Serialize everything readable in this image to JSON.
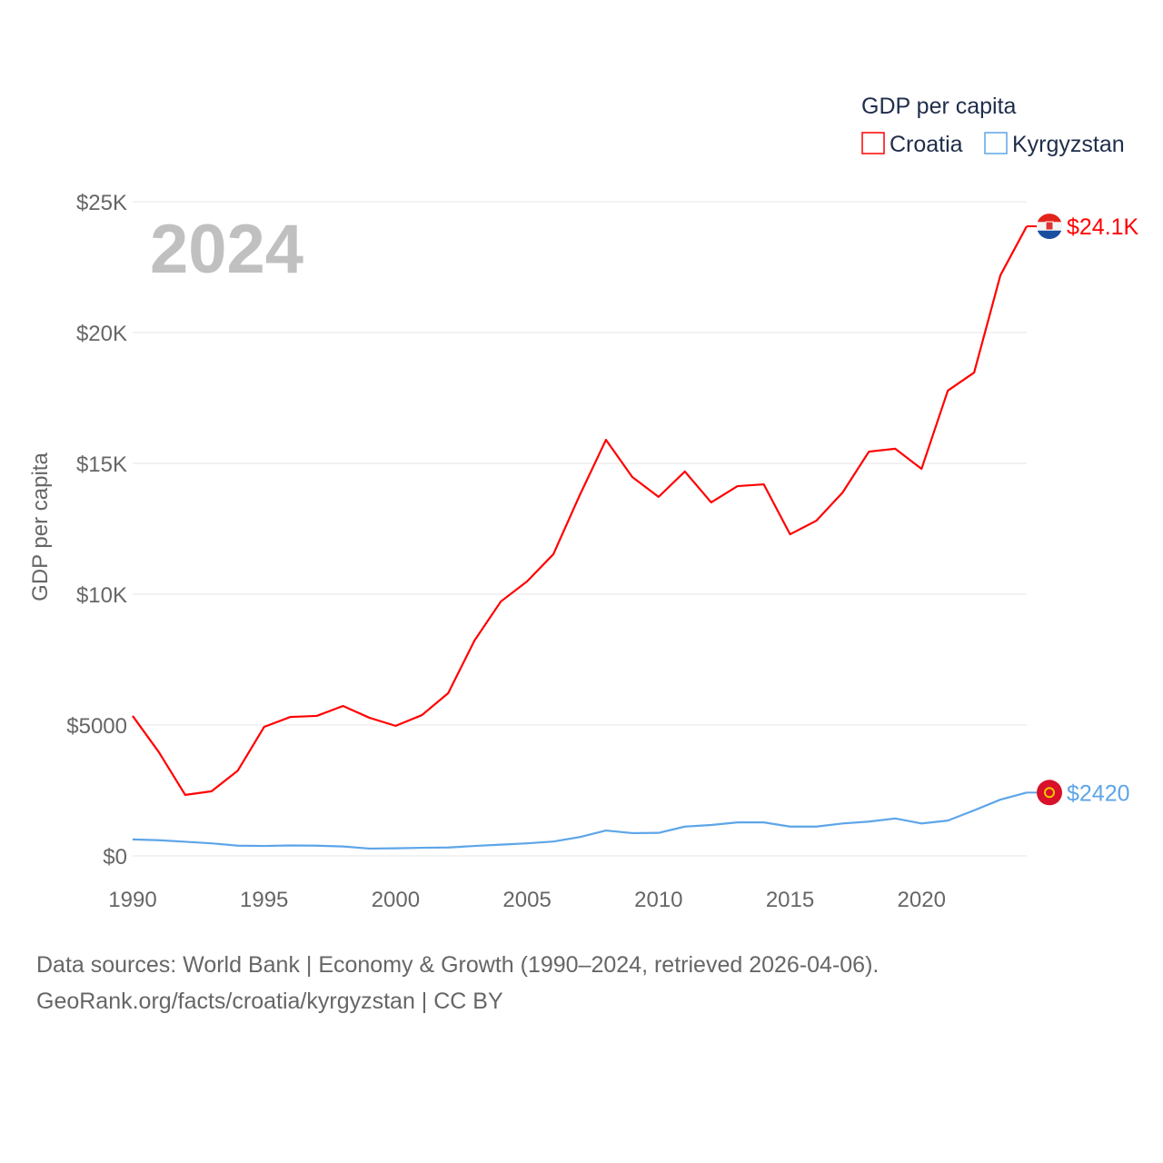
{
  "chart_data": {
    "type": "line",
    "title": "GDP per capita",
    "year_label": "2024",
    "ylabel": "GDP per capita",
    "xlabel": "",
    "ylim": [
      0,
      25000
    ],
    "xlim": [
      1990,
      2024
    ],
    "grid": true,
    "legend_placement": "top-right",
    "y_ticks": [
      {
        "v": 0,
        "label": "$0"
      },
      {
        "v": 5000,
        "label": "$5000"
      },
      {
        "v": 10000,
        "label": "$10K"
      },
      {
        "v": 15000,
        "label": "$15K"
      },
      {
        "v": 20000,
        "label": "$20K"
      },
      {
        "v": 25000,
        "label": "$25K"
      }
    ],
    "x_ticks": [
      1990,
      1995,
      2000,
      2005,
      2010,
      2015,
      2020
    ],
    "x": [
      1990,
      1991,
      1992,
      1993,
      1994,
      1995,
      1996,
      1997,
      1998,
      1999,
      2000,
      2001,
      2002,
      2003,
      2004,
      2005,
      2006,
      2007,
      2008,
      2009,
      2010,
      2011,
      2012,
      2013,
      2014,
      2015,
      2016,
      2017,
      2018,
      2019,
      2020,
      2021,
      2022,
      2023,
      2024
    ],
    "series": [
      {
        "name": "Croatia",
        "color": "#ff0000",
        "end_label": "$24.1K",
        "flag": "croatia-flag",
        "values": [
          5350,
          3960,
          2330,
          2470,
          3260,
          4930,
          5310,
          5350,
          5730,
          5280,
          4970,
          5380,
          6220,
          8230,
          9720,
          10490,
          11530,
          13780,
          15900,
          14480,
          13720,
          14690,
          13510,
          14130,
          14200,
          12290,
          12810,
          13890,
          15450,
          15560,
          14790,
          17780,
          18470,
          22190,
          24060
        ]
      },
      {
        "name": "Kyrgyzstan",
        "color": "#5da5e8",
        "end_label": "$2420",
        "flag": "kyrgyzstan-flag",
        "values": [
          630,
          600,
          540,
          480,
          390,
          380,
          400,
          390,
          360,
          280,
          290,
          310,
          320,
          380,
          430,
          480,
          550,
          720,
          970,
          870,
          880,
          1120,
          1180,
          1280,
          1280,
          1120,
          1120,
          1240,
          1310,
          1430,
          1240,
          1350,
          1740,
          2150,
          2420
        ]
      }
    ]
  },
  "footer": {
    "line1": "Data sources: World Bank | Economy & Growth (1990–2024, retrieved 2026-04-06).",
    "line2": "GeoRank.org/facts/croatia/kyrgyzstan | CC BY"
  }
}
